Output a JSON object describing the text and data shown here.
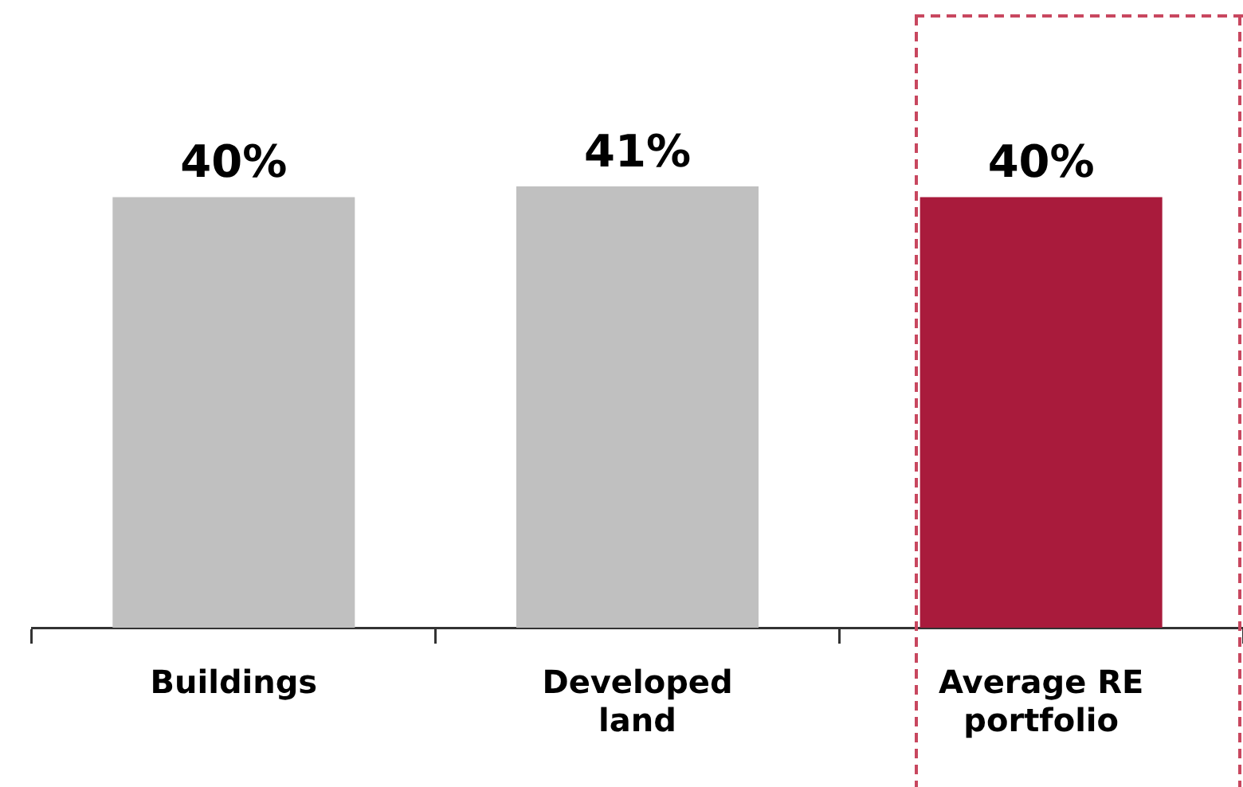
{
  "chart_data": {
    "type": "bar",
    "categories": [
      "Buildings",
      "Developed land",
      "Average RE portfolio"
    ],
    "values": [
      40,
      41,
      40
    ],
    "colors": [
      "#c0c0c0",
      "#c0c0c0",
      "#a91b3c"
    ],
    "value_labels": [
      "40%",
      "41%",
      "40%"
    ],
    "tick_labels": "x",
    "grid": false,
    "legend": false
  }
}
